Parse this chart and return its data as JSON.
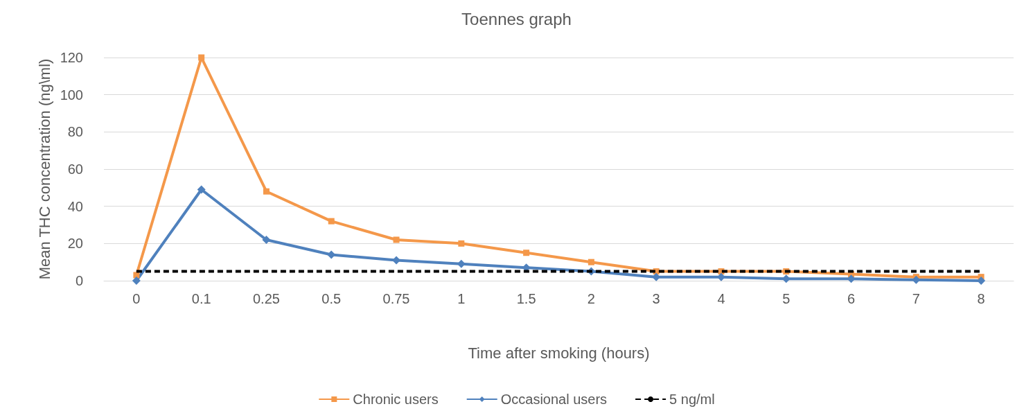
{
  "chart_data": {
    "type": "line",
    "title": "Toennes graph",
    "xlabel": "Time after smoking (hours)",
    "ylabel": "Mean THC concentration (ng\\ml)",
    "categories": [
      "0",
      "0.1",
      "0.25",
      "0.5",
      "0.75",
      "1",
      "1.5",
      "2",
      "3",
      "4",
      "5",
      "6",
      "7",
      "8"
    ],
    "series": [
      {
        "name": "Chronic users",
        "color": "#f4984a",
        "marker": "square",
        "values": [
          3,
          120,
          48,
          32,
          22,
          20,
          15,
          10,
          5,
          5,
          5,
          3.5,
          2,
          2
        ]
      },
      {
        "name": "Occasional users",
        "color": "#4f81bd",
        "marker": "diamond",
        "values": [
          0,
          49,
          22,
          14,
          11,
          9,
          7,
          5,
          2,
          2,
          1,
          1,
          0.5,
          0
        ]
      },
      {
        "name": "5 ng/ml",
        "color": "#000000",
        "marker": "none",
        "line_style": "dashed",
        "values": [
          5,
          5,
          5,
          5,
          5,
          5,
          5,
          5,
          5,
          5,
          5,
          5,
          5,
          5
        ]
      }
    ],
    "ylim": [
      0,
      120
    ],
    "yticks": [
      0,
      20,
      40,
      60,
      80,
      100,
      120
    ],
    "grid": "y",
    "legend": "bottom",
    "line_style": "solid"
  }
}
